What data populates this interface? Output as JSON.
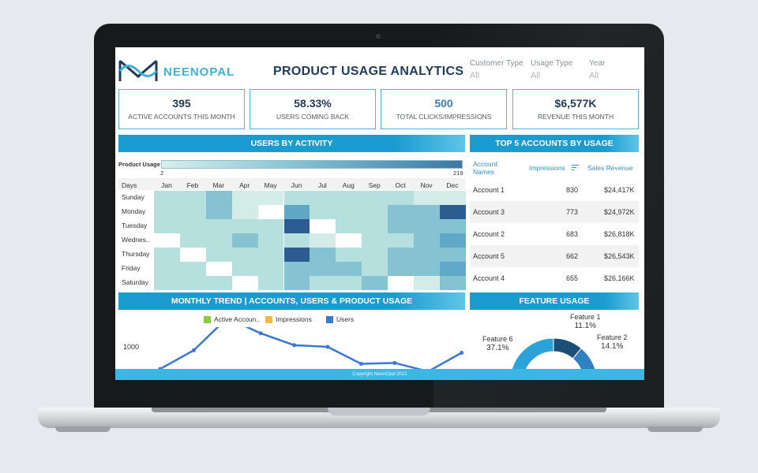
{
  "brand": {
    "name": "NEENOPAL"
  },
  "title": "PRODUCT USAGE ANALYTICS",
  "filters": [
    {
      "label": "Customer Type",
      "value": "All"
    },
    {
      "label": "Usage Type",
      "value": "All"
    },
    {
      "label": "Year",
      "value": "All"
    }
  ],
  "kpis": [
    {
      "value": "395",
      "label": "ACTIVE ACCOUNTS THIS MONTH"
    },
    {
      "value": "58.33%",
      "label": "USERS COMING BACK"
    },
    {
      "value": "500",
      "label": "TOTAL CLICKS/IMPRESSIONS"
    },
    {
      "value": "$6,577K",
      "label": "REVENUE THIS MONTH"
    }
  ],
  "users_by_activity": {
    "title": "USERS BY ACTIVITY",
    "legend_label": "Product Usage",
    "scale_min": "2",
    "scale_max": "219",
    "days_header": "Days",
    "months": [
      "Jan",
      "Feb",
      "Mar",
      "Apr",
      "May",
      "Jun",
      "Jul",
      "Aug",
      "Sep",
      "Oct",
      "Nov",
      "Dec"
    ],
    "days": [
      "Sunday",
      "Monday",
      "Tuesday",
      "Wednes..",
      "Thursday",
      "Friday",
      "Saturday"
    ],
    "levels": [
      [
        2,
        2,
        3,
        1,
        1,
        2,
        2,
        2,
        2,
        2,
        1,
        1
      ],
      [
        2,
        2,
        3,
        1,
        0,
        4,
        2,
        2,
        2,
        3,
        3,
        5
      ],
      [
        2,
        2,
        2,
        2,
        2,
        5,
        0,
        2,
        2,
        3,
        3,
        3
      ],
      [
        0,
        2,
        2,
        3,
        2,
        2,
        1,
        0,
        2,
        2,
        3,
        4
      ],
      [
        2,
        0,
        2,
        2,
        2,
        5,
        3,
        2,
        2,
        3,
        3,
        3
      ],
      [
        2,
        2,
        0,
        2,
        2,
        3,
        3,
        3,
        2,
        3,
        3,
        4
      ],
      [
        2,
        2,
        2,
        0,
        2,
        3,
        2,
        2,
        3,
        0,
        1,
        3
      ]
    ]
  },
  "top_accounts": {
    "title": "TOP 5 ACCOUNTS BY USAGE",
    "headers": {
      "name_line1": "Account",
      "name_line2": "Names",
      "impressions": "Impressions",
      "revenue": "Sales Revenue"
    },
    "rows": [
      {
        "name": "Account 1",
        "impressions": "830",
        "revenue": "$24,417K"
      },
      {
        "name": "Account 3",
        "impressions": "773",
        "revenue": "$24,972K"
      },
      {
        "name": "Account 2",
        "impressions": "683",
        "revenue": "$26,818K"
      },
      {
        "name": "Account 5",
        "impressions": "662",
        "revenue": "$26,543K"
      },
      {
        "name": "Account 4",
        "impressions": "655",
        "revenue": "$26,166K"
      }
    ]
  },
  "monthly_trend": {
    "title": "MONTHLY TREND | ACCOUNTS, USERS & PRODUCT USAGE",
    "legend": [
      {
        "name": "Active Accoun..",
        "color": "#8cc751"
      },
      {
        "name": "Impressions",
        "color": "#f2b84b"
      },
      {
        "name": "Users",
        "color": "#3a77d6"
      }
    ],
    "y_tick": "1000",
    "users_values": [
      870,
      980,
      1170,
      1080,
      1010,
      1000,
      900,
      905,
      855,
      965
    ]
  },
  "feature_usage": {
    "title": "FEATURE USAGE",
    "slices": [
      {
        "name": "Feature 1",
        "value": "11.1%",
        "color": "#1d4e78"
      },
      {
        "name": "Feature 2",
        "value": "14.1%",
        "color": "#2f7fc1"
      },
      {
        "name": "Feature 6",
        "value": "37.1%",
        "color": "#2ba3d9"
      }
    ]
  },
  "footer": "Copyright NeenOpal 2021",
  "colors": {
    "accent": "#1b9cd0",
    "navy": "#1f3a5a"
  }
}
